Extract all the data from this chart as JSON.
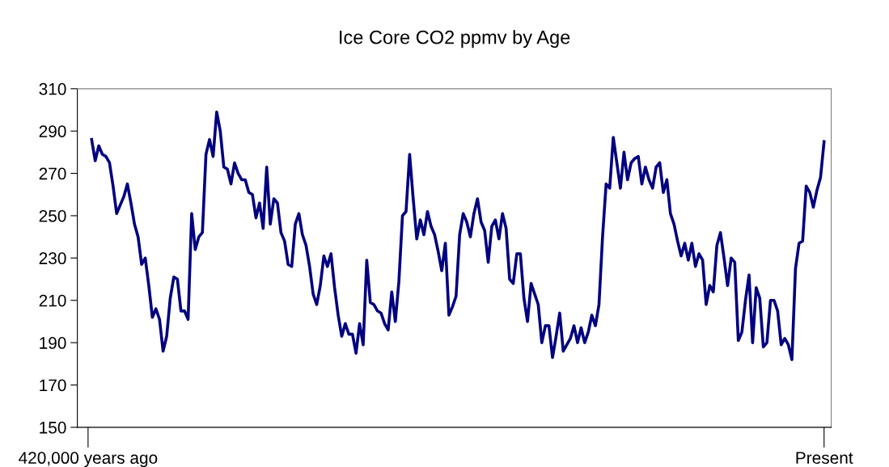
{
  "chart_data": {
    "type": "line",
    "title": "Ice Core CO2 ppmv by Age",
    "categories": [
      "420,000 years ago",
      null,
      null,
      null,
      null,
      null,
      null,
      null,
      null,
      null,
      null,
      null,
      null,
      null,
      null,
      null,
      null,
      null,
      null,
      null,
      null,
      null,
      null,
      null,
      null,
      null,
      null,
      null,
      null,
      null,
      null,
      null,
      null,
      null,
      null,
      null,
      null,
      null,
      null,
      null,
      null,
      null,
      null,
      null,
      null,
      null,
      null,
      null,
      null,
      null,
      null,
      null,
      null,
      null,
      null,
      null,
      null,
      null,
      null,
      null,
      null,
      null,
      null,
      null,
      null,
      null,
      null,
      null,
      null,
      null,
      null,
      null,
      null,
      null,
      null,
      null,
      null,
      null,
      null,
      null,
      null,
      null,
      null,
      null,
      null,
      null,
      null,
      null,
      null,
      null,
      null,
      null,
      null,
      null,
      null,
      null,
      null,
      null,
      null,
      null,
      null,
      null,
      null,
      null,
      null,
      null,
      null,
      null,
      null,
      null,
      null,
      null,
      null,
      null,
      null,
      null,
      null,
      null,
      null,
      null,
      null,
      null,
      null,
      null,
      null,
      null,
      null,
      null,
      null,
      null,
      null,
      null,
      null,
      null,
      null,
      null,
      null,
      null,
      null,
      null,
      null,
      null,
      null,
      null,
      null,
      null,
      null,
      null,
      null,
      null,
      null,
      null,
      null,
      null,
      null,
      null,
      null,
      null,
      null,
      null,
      null,
      null,
      null,
      null,
      null,
      null,
      null,
      null,
      null,
      null,
      null,
      null,
      null,
      null,
      null,
      null,
      null,
      null,
      null,
      null,
      null,
      null,
      null,
      null,
      null,
      null,
      null,
      null,
      null,
      null,
      null,
      null,
      null,
      null,
      null,
      null,
      null,
      null,
      null,
      null,
      null,
      null,
      null,
      null,
      null,
      null,
      "Present"
    ],
    "series": [
      {
        "color": "#000080",
        "values": [
          null,
          286,
          276,
          283,
          279,
          278,
          275,
          264,
          251,
          255,
          259,
          265,
          256,
          246,
          240,
          227,
          230,
          217,
          202,
          206,
          201,
          186,
          193,
          211,
          221,
          220,
          205,
          205,
          201,
          251,
          234,
          240,
          242,
          279,
          286,
          278,
          299,
          290,
          273,
          272,
          265,
          275,
          270,
          267,
          267,
          261,
          260,
          249,
          256,
          244,
          273,
          246,
          258,
          256,
          242,
          238,
          227,
          226,
          246,
          251,
          241,
          236,
          226,
          213,
          208,
          217,
          231,
          226,
          232,
          216,
          203,
          193,
          199,
          194,
          194,
          185,
          199,
          189,
          229,
          209,
          208,
          205,
          204,
          199,
          196,
          214,
          200,
          219,
          250,
          252,
          279,
          258,
          239,
          248,
          241,
          252,
          245,
          241,
          233,
          224,
          237,
          203,
          207,
          212,
          241,
          251,
          247,
          240,
          251,
          258,
          247,
          243,
          228,
          245,
          248,
          239,
          251,
          244,
          220,
          218,
          232,
          232,
          211,
          200,
          218,
          213,
          208,
          190,
          198,
          198,
          183,
          193,
          204,
          186,
          189,
          192,
          198,
          190,
          197,
          190,
          195,
          203,
          198,
          208,
          240,
          265,
          263,
          287,
          275,
          263,
          280,
          267,
          275,
          277,
          278,
          265,
          273,
          267,
          263,
          273,
          275,
          261,
          267,
          251,
          246,
          238,
          231,
          237,
          229,
          237,
          226,
          232,
          229,
          208,
          217,
          214,
          236,
          242,
          230,
          217,
          230,
          228,
          191,
          195,
          210,
          222,
          190,
          216,
          211,
          188,
          190,
          210,
          210,
          205,
          189,
          192,
          189,
          182,
          225,
          237,
          238,
          264,
          261,
          254,
          262,
          268,
          285
        ]
      }
    ],
    "ylim": [
      150,
      310
    ],
    "yticks": [
      150,
      170,
      190,
      210,
      230,
      250,
      270,
      290,
      310
    ]
  }
}
